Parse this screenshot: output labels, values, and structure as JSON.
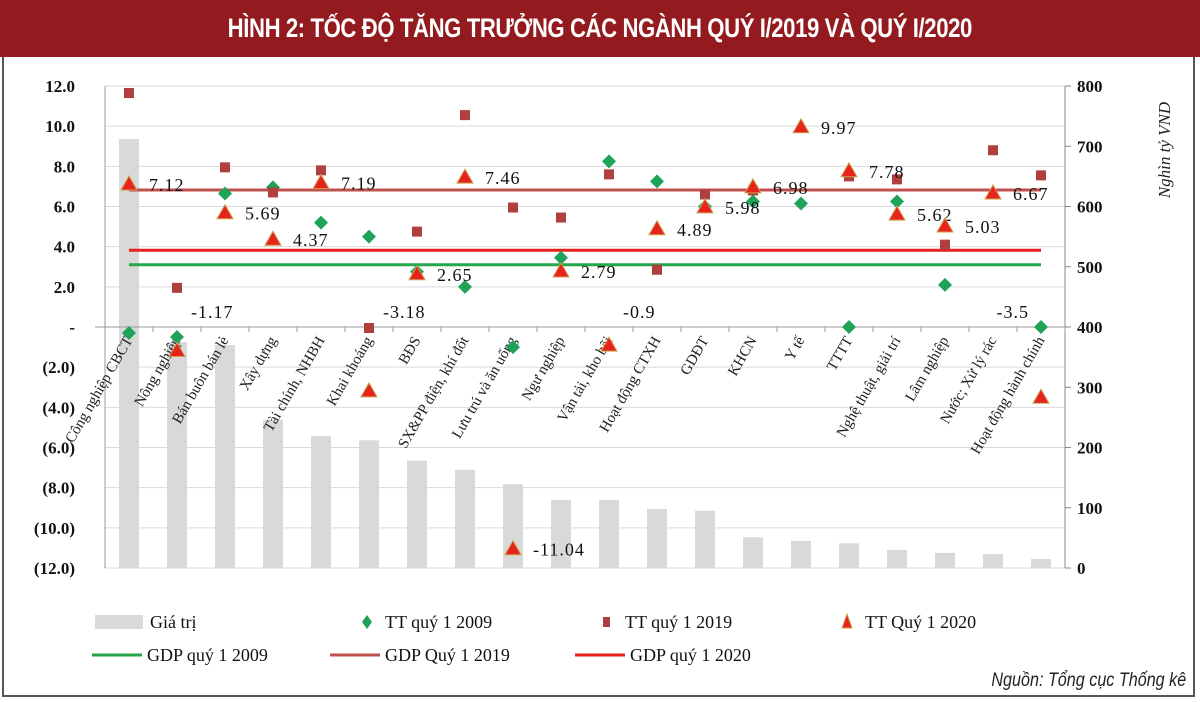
{
  "title": "HÌNH 2: TỐC ĐỘ TĂNG TRƯỞNG CÁC NGÀNH QUÝ I/2019 VÀ QUÝ I/2020",
  "source": "Nguồn: Tổng cục Thống kê",
  "chart_data": {
    "type": "bar",
    "title": "HÌNH 2: TỐC ĐỘ TĂNG TRƯỞNG CÁC NGÀNH QUÝ I/2019 VÀ QUÝ I/2020",
    "categories": [
      "Công nghiệp CBCT",
      "Nông nghiệp",
      "Bán buôn bán lẻ",
      "Xây dựng",
      "Tài chính, NHBH",
      "Khai khoáng",
      "BĐS",
      "SX&PP điện, khí đốt",
      "Lưu trú và ăn uống",
      "Ngư nghiệp",
      "Vận tải, kho bãi",
      "Hoạt động CTXH",
      "GDĐT",
      "KHCN",
      "Y tế",
      "TTTT",
      "Nghệ thuật, giải trí",
      "Lâm nghiệp",
      "Nước; Xử lý rác",
      "Hoạt động hành chính"
    ],
    "y_left": {
      "range": [
        -12,
        12
      ],
      "ticks": [
        "12.0",
        "10.0",
        "8.0",
        "6.0",
        "4.0",
        "2.0",
        "-",
        "(2.0)",
        "(4.0)",
        "(6.0)",
        "(8.0)",
        "(10.0)",
        "(12.0)"
      ],
      "tick_values": [
        12,
        10,
        8,
        6,
        4,
        2,
        0,
        -2,
        -4,
        -6,
        -8,
        -10,
        -12
      ]
    },
    "y_right": {
      "label": "Nghìn tỷ VND",
      "range": [
        0,
        800
      ],
      "ticks": [
        "800",
        "700",
        "600",
        "500",
        "400",
        "300",
        "200",
        "100",
        "0"
      ],
      "tick_values": [
        800,
        700,
        600,
        500,
        400,
        300,
        200,
        100,
        0
      ]
    },
    "grid": true,
    "legend_placement": "bottom",
    "series": [
      {
        "name": "Giá trị",
        "kind": "bar",
        "axis": "right",
        "color": "#d9d9d9",
        "values": [
          712,
          375,
          370,
          246,
          219,
          212,
          178,
          163,
          139,
          113,
          113,
          98,
          95,
          51,
          45,
          41,
          30,
          25,
          23,
          15
        ]
      },
      {
        "name": "TT quý 1 2009",
        "kind": "diamond",
        "axis": "left",
        "color": "#1fa35a",
        "values": [
          -0.3,
          -0.5,
          6.65,
          6.95,
          5.2,
          4.5,
          2.75,
          2.0,
          -1.0,
          3.45,
          8.25,
          7.25,
          6.0,
          6.25,
          6.15,
          0,
          6.25,
          2.1,
          null,
          0
        ]
      },
      {
        "name": "TT quý 1 2019",
        "kind": "square",
        "axis": "left",
        "color": "#b0403e",
        "values": [
          11.65,
          1.95,
          7.95,
          6.7,
          7.8,
          -0.05,
          4.75,
          10.55,
          5.95,
          5.45,
          7.6,
          2.85,
          6.6,
          6.8,
          null,
          7.5,
          7.35,
          4.1,
          8.8,
          7.55
        ]
      },
      {
        "name": "TT Quý 1 2020",
        "kind": "triangle",
        "axis": "left",
        "color": "#e8231e",
        "edge": "#c9a24a",
        "values": [
          7.12,
          -1.17,
          5.69,
          4.37,
          7.19,
          -3.18,
          2.65,
          7.46,
          -11.04,
          2.79,
          -0.9,
          4.89,
          5.98,
          6.98,
          9.97,
          7.78,
          5.62,
          5.03,
          6.67,
          -3.5
        ],
        "labels": [
          "7.12",
          "-1.17",
          "5.69",
          "4.37",
          "7.19",
          "-3.18",
          "2.65",
          "7.46",
          "-11.04",
          "2.79",
          "-0.9",
          "4.89",
          "5.98",
          "6.98",
          "9.97",
          "7.78",
          "5.62",
          "5.03",
          "6.67",
          "-3.5"
        ]
      },
      {
        "name": "GDP quý 1 2009",
        "kind": "hline",
        "axis": "left",
        "color": "#22a84a",
        "value": 3.1
      },
      {
        "name": "GDP Quý 1 2019",
        "kind": "hline",
        "axis": "left",
        "color": "#c0504d",
        "value": 6.82
      },
      {
        "name": "GDP quý 1 2020",
        "kind": "hline",
        "axis": "left",
        "color": "#e8201c",
        "value": 3.82
      }
    ]
  }
}
